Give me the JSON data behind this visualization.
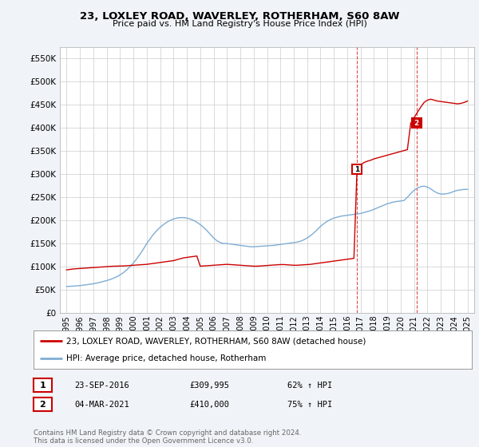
{
  "title": "23, LOXLEY ROAD, WAVERLEY, ROTHERHAM, S60 8AW",
  "subtitle": "Price paid vs. HM Land Registry's House Price Index (HPI)",
  "legend_line1": "23, LOXLEY ROAD, WAVERLEY, ROTHERHAM, S60 8AW (detached house)",
  "legend_line2": "HPI: Average price, detached house, Rotherham",
  "annotation1_label": "1",
  "annotation1_date": "23-SEP-2016",
  "annotation1_price": "£309,995",
  "annotation1_hpi": "62% ↑ HPI",
  "annotation1_year": 2016.73,
  "annotation1_value": 309995,
  "annotation2_label": "2",
  "annotation2_date": "04-MAR-2021",
  "annotation2_price": "£410,000",
  "annotation2_hpi": "75% ↑ HPI",
  "annotation2_year": 2021.17,
  "annotation2_value": 410000,
  "footer": "Contains HM Land Registry data © Crown copyright and database right 2024.\nThis data is licensed under the Open Government Licence v3.0.",
  "red_color": "#cc0000",
  "blue_color": "#7eadd4",
  "background_color": "#f0f4f8",
  "plot_bg_color": "#ffffff",
  "ylim": [
    0,
    575000
  ],
  "yticks": [
    0,
    50000,
    100000,
    150000,
    200000,
    250000,
    300000,
    350000,
    400000,
    450000,
    500000,
    550000
  ],
  "ytick_labels": [
    "£0",
    "£50K",
    "£100K",
    "£150K",
    "£200K",
    "£250K",
    "£300K",
    "£350K",
    "£400K",
    "£450K",
    "£500K",
    "£550K"
  ],
  "xlim": [
    1994.5,
    2025.5
  ],
  "xticks": [
    1995,
    1996,
    1997,
    1998,
    1999,
    2000,
    2001,
    2002,
    2003,
    2004,
    2005,
    2006,
    2007,
    2008,
    2009,
    2010,
    2011,
    2012,
    2013,
    2014,
    2015,
    2016,
    2017,
    2018,
    2019,
    2020,
    2021,
    2022,
    2023,
    2024,
    2025
  ],
  "red_x": [
    1995.0,
    1995.25,
    1995.5,
    1995.75,
    1996.0,
    1996.25,
    1996.5,
    1996.75,
    1997.0,
    1997.25,
    1997.5,
    1997.75,
    1998.0,
    1998.25,
    1998.5,
    1998.75,
    1999.0,
    1999.25,
    1999.5,
    1999.75,
    2000.0,
    2000.25,
    2000.5,
    2000.75,
    2001.0,
    2001.25,
    2001.5,
    2001.75,
    2002.0,
    2002.25,
    2002.5,
    2002.75,
    2003.0,
    2003.25,
    2003.5,
    2003.75,
    2004.0,
    2004.25,
    2004.5,
    2004.75,
    2005.0,
    2005.25,
    2005.5,
    2005.75,
    2006.0,
    2006.25,
    2006.5,
    2006.75,
    2007.0,
    2007.25,
    2007.5,
    2007.75,
    2008.0,
    2008.25,
    2008.5,
    2008.75,
    2009.0,
    2009.25,
    2009.5,
    2009.75,
    2010.0,
    2010.25,
    2010.5,
    2010.75,
    2011.0,
    2011.25,
    2011.5,
    2011.75,
    2012.0,
    2012.25,
    2012.5,
    2012.75,
    2013.0,
    2013.25,
    2013.5,
    2013.75,
    2014.0,
    2014.25,
    2014.5,
    2014.75,
    2015.0,
    2015.25,
    2015.5,
    2015.75,
    2016.0,
    2016.25,
    2016.5,
    2016.73,
    2017.0,
    2017.25,
    2017.5,
    2017.75,
    2018.0,
    2018.25,
    2018.5,
    2018.75,
    2019.0,
    2019.25,
    2019.5,
    2019.75,
    2020.0,
    2020.25,
    2020.5,
    2020.75,
    2021.17,
    2021.5,
    2021.75,
    2022.0,
    2022.25,
    2022.5,
    2022.75,
    2023.0,
    2023.25,
    2023.5,
    2023.75,
    2024.0,
    2024.25,
    2024.5,
    2024.75,
    2025.0
  ],
  "red_y": [
    93000,
    94000,
    95000,
    95500,
    96000,
    96500,
    97000,
    97500,
    98000,
    98500,
    99000,
    99500,
    100000,
    100500,
    101000,
    101000,
    101500,
    101500,
    102000,
    102500,
    103000,
    103500,
    104000,
    104500,
    105000,
    106000,
    107000,
    108000,
    109000,
    110000,
    111000,
    112000,
    113000,
    115000,
    117000,
    119000,
    120000,
    121000,
    122000,
    123000,
    101000,
    101500,
    102000,
    102500,
    103000,
    103500,
    104000,
    104500,
    105000,
    104500,
    104000,
    103500,
    103000,
    102500,
    102000,
    101500,
    101000,
    101000,
    101500,
    102000,
    102500,
    103000,
    103500,
    104000,
    104500,
    104500,
    104000,
    103500,
    103000,
    103000,
    103500,
    104000,
    104500,
    105000,
    106000,
    107000,
    108000,
    109000,
    110000,
    111000,
    112000,
    113000,
    114000,
    115000,
    116000,
    117000,
    118000,
    309995,
    320000,
    325000,
    328000,
    330000,
    333000,
    335000,
    337000,
    339000,
    341000,
    343000,
    345000,
    347000,
    349000,
    351000,
    353000,
    410000,
    430000,
    445000,
    455000,
    460000,
    462000,
    460000,
    458000,
    457000,
    456000,
    455000,
    454000,
    453000,
    452000,
    453000,
    455000,
    458000
  ],
  "blue_x": [
    1995.0,
    1995.25,
    1995.5,
    1995.75,
    1996.0,
    1996.25,
    1996.5,
    1996.75,
    1997.0,
    1997.25,
    1997.5,
    1997.75,
    1998.0,
    1998.25,
    1998.5,
    1998.75,
    1999.0,
    1999.25,
    1999.5,
    1999.75,
    2000.0,
    2000.25,
    2000.5,
    2000.75,
    2001.0,
    2001.25,
    2001.5,
    2001.75,
    2002.0,
    2002.25,
    2002.5,
    2002.75,
    2003.0,
    2003.25,
    2003.5,
    2003.75,
    2004.0,
    2004.25,
    2004.5,
    2004.75,
    2005.0,
    2005.25,
    2005.5,
    2005.75,
    2006.0,
    2006.25,
    2006.5,
    2006.75,
    2007.0,
    2007.25,
    2007.5,
    2007.75,
    2008.0,
    2008.25,
    2008.5,
    2008.75,
    2009.0,
    2009.25,
    2009.5,
    2009.75,
    2010.0,
    2010.25,
    2010.5,
    2010.75,
    2011.0,
    2011.25,
    2011.5,
    2011.75,
    2012.0,
    2012.25,
    2012.5,
    2012.75,
    2013.0,
    2013.25,
    2013.5,
    2013.75,
    2014.0,
    2014.25,
    2014.5,
    2014.75,
    2015.0,
    2015.25,
    2015.5,
    2015.75,
    2016.0,
    2016.25,
    2016.5,
    2016.75,
    2017.0,
    2017.25,
    2017.5,
    2017.75,
    2018.0,
    2018.25,
    2018.5,
    2018.75,
    2019.0,
    2019.25,
    2019.5,
    2019.75,
    2020.0,
    2020.25,
    2020.5,
    2020.75,
    2021.0,
    2021.25,
    2021.5,
    2021.75,
    2022.0,
    2022.25,
    2022.5,
    2022.75,
    2023.0,
    2023.25,
    2023.5,
    2023.75,
    2024.0,
    2024.25,
    2024.5,
    2024.75,
    2025.0
  ],
  "blue_y": [
    57000,
    57500,
    58000,
    58500,
    59000,
    60000,
    61000,
    62000,
    63000,
    64500,
    66000,
    68000,
    70000,
    72000,
    75000,
    78000,
    82000,
    87000,
    93000,
    100000,
    108000,
    117000,
    127000,
    138000,
    150000,
    160000,
    170000,
    178000,
    185000,
    191000,
    196000,
    200000,
    203000,
    205000,
    206000,
    206000,
    205000,
    203000,
    200000,
    196000,
    191000,
    185000,
    178000,
    170000,
    162000,
    156000,
    152000,
    150000,
    150000,
    149000,
    148000,
    147000,
    146000,
    145000,
    144000,
    143000,
    143000,
    143500,
    144000,
    144500,
    145000,
    145500,
    146000,
    147000,
    148000,
    149000,
    150000,
    151000,
    152000,
    153000,
    155000,
    158000,
    162000,
    167000,
    173000,
    180000,
    187000,
    193000,
    198000,
    202000,
    205000,
    207000,
    209000,
    210000,
    211000,
    212000,
    213000,
    214000,
    215000,
    217000,
    219000,
    221000,
    224000,
    227000,
    230000,
    233000,
    236000,
    238000,
    240000,
    241000,
    242000,
    243000,
    250000,
    258000,
    265000,
    270000,
    273000,
    274000,
    272000,
    268000,
    263000,
    259000,
    257000,
    257000,
    258000,
    260000,
    263000,
    265000,
    266000,
    267000,
    267000
  ]
}
